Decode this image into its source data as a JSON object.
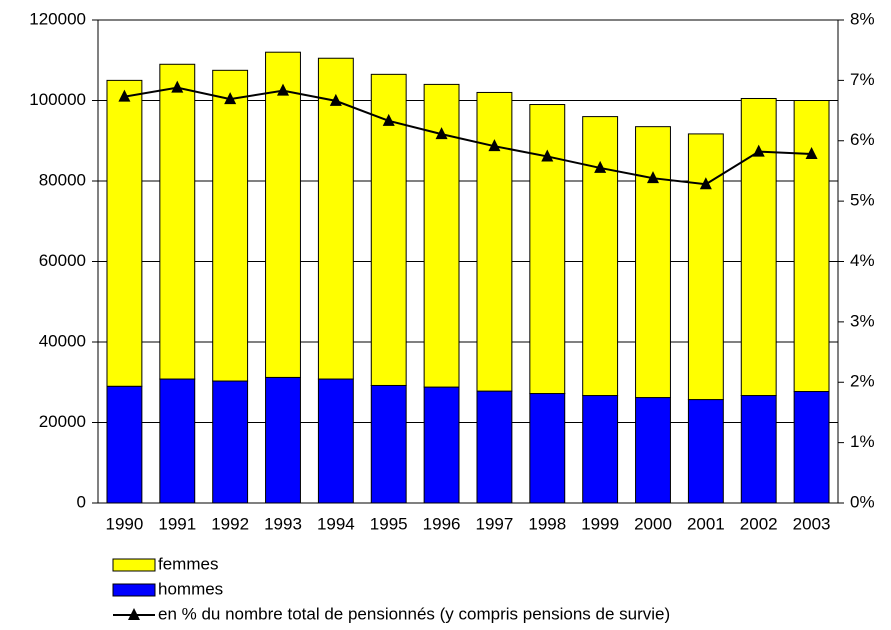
{
  "chart_data": {
    "type": "bar",
    "categories": [
      "1990",
      "1991",
      "1992",
      "1993",
      "1994",
      "1995",
      "1996",
      "1997",
      "1998",
      "1999",
      "2000",
      "2001",
      "2002",
      "2003"
    ],
    "series": [
      {
        "name": "femmes",
        "color": "#ffff00",
        "type": "bar",
        "values": [
          76000,
          78200,
          77200,
          80800,
          79700,
          77300,
          75200,
          74200,
          71800,
          69300,
          67300,
          66000,
          73800,
          72300
        ]
      },
      {
        "name": "hommes",
        "color": "#0000ff",
        "type": "bar",
        "values": [
          29000,
          30800,
          30300,
          31200,
          30800,
          29200,
          28800,
          27800,
          27200,
          26700,
          26200,
          25700,
          26700,
          27700
        ]
      },
      {
        "name": "en % du nombre total de pensionnés (y compris pensions de survie)",
        "color": "#000000",
        "type": "line",
        "axis": "y2",
        "values": [
          6.73,
          6.88,
          6.69,
          6.83,
          6.66,
          6.33,
          6.11,
          5.91,
          5.74,
          5.55,
          5.38,
          5.28,
          5.82,
          5.78
        ]
      }
    ],
    "ylim": [
      0,
      120000
    ],
    "yticks": [
      0,
      20000,
      40000,
      60000,
      80000,
      100000,
      120000
    ],
    "y2lim": [
      0,
      8
    ],
    "y2ticks": [
      {
        "value": 0,
        "label": "0%"
      },
      {
        "value": 1,
        "label": "1%"
      },
      {
        "value": 2,
        "label": "2%"
      },
      {
        "value": 3,
        "label": "3%"
      },
      {
        "value": 4,
        "label": "4%"
      },
      {
        "value": 5,
        "label": "5%"
      },
      {
        "value": 6,
        "label": "6%"
      },
      {
        "value": 7,
        "label": "7%"
      },
      {
        "value": 8,
        "label": "8%"
      }
    ],
    "grid": true,
    "stacked": true,
    "legend": "bottom"
  }
}
